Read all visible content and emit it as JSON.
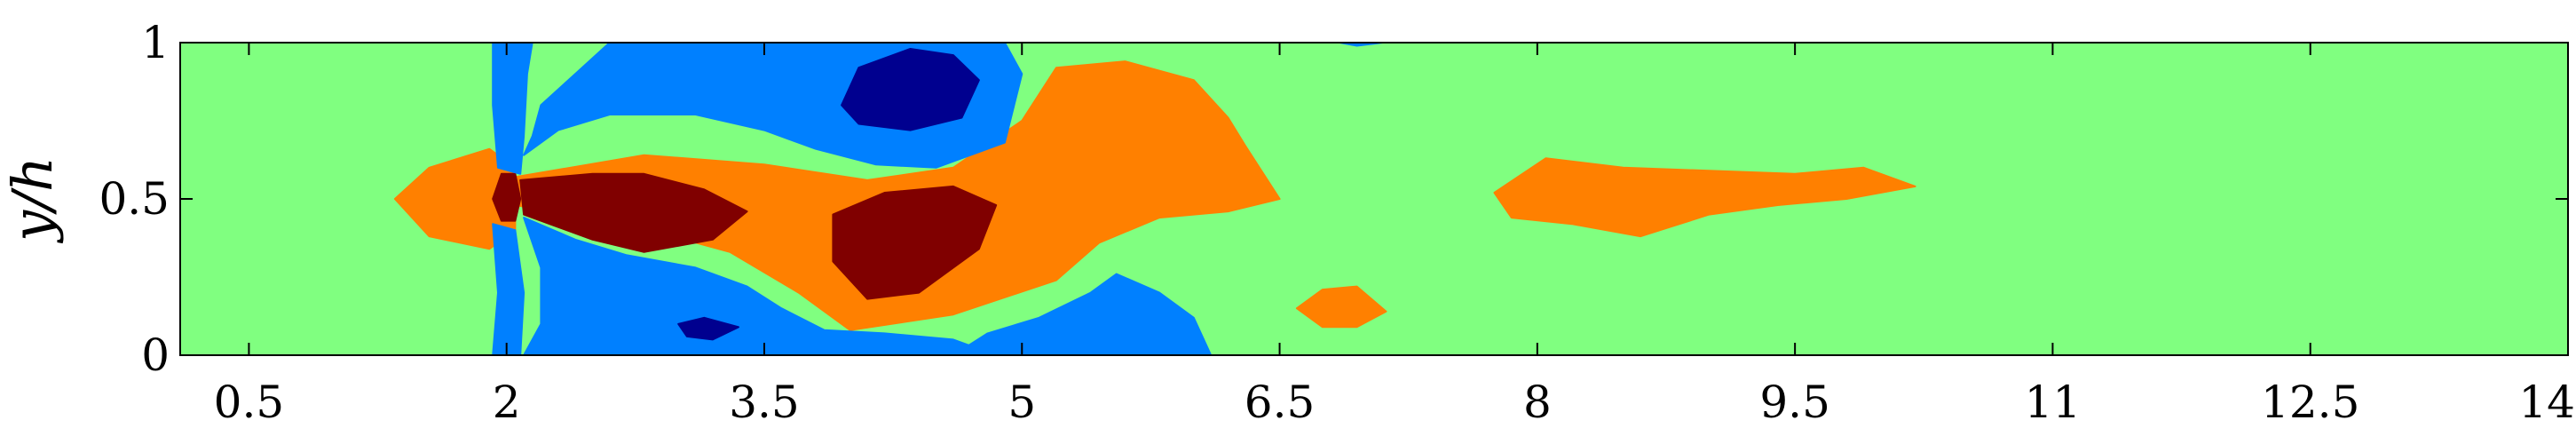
{
  "chart_data": {
    "type": "heatmap",
    "title": "",
    "xlabel": "",
    "ylabel": "y/h",
    "xlim": [
      0.1,
      14
    ],
    "ylim": [
      0,
      1
    ],
    "x_ticks": [
      "0.5",
      "2",
      "3.5",
      "5",
      "6.5",
      "8",
      "9.5",
      "11",
      "12.5",
      "14"
    ],
    "x_tick_values": [
      0.5,
      2,
      3.5,
      5,
      6.5,
      8,
      9.5,
      11,
      12.5,
      14
    ],
    "y_ticks": [
      "0",
      "0.5",
      "1"
    ],
    "y_tick_values": [
      0,
      0.5,
      1
    ],
    "grid": false,
    "colormap": "jet",
    "colors": {
      "background": "#80ff80",
      "strong_negative": "#00008f",
      "negative": "#0080ff",
      "positive": "#ff8000",
      "strong_positive": "#800000"
    },
    "regions": [
      {
        "level": "positive",
        "points": [
          [
            1.35,
            0.5
          ],
          [
            1.55,
            0.6
          ],
          [
            1.9,
            0.66
          ],
          [
            2.05,
            0.6
          ],
          [
            2.05,
            0.4
          ],
          [
            1.9,
            0.34
          ],
          [
            1.55,
            0.38
          ]
        ]
      },
      {
        "level": "positive",
        "points": [
          [
            2.05,
            0.57
          ],
          [
            2.8,
            0.64
          ],
          [
            3.5,
            0.61
          ],
          [
            4.1,
            0.56
          ],
          [
            4.6,
            0.6
          ],
          [
            5.0,
            0.75
          ],
          [
            5.2,
            0.92
          ],
          [
            5.6,
            0.94
          ],
          [
            6.0,
            0.88
          ],
          [
            6.2,
            0.76
          ],
          [
            6.3,
            0.67
          ],
          [
            6.5,
            0.5
          ],
          [
            6.2,
            0.46
          ],
          [
            5.8,
            0.44
          ],
          [
            5.45,
            0.36
          ],
          [
            5.2,
            0.24
          ],
          [
            4.6,
            0.13
          ],
          [
            4.0,
            0.08
          ],
          [
            3.7,
            0.2
          ],
          [
            3.3,
            0.33
          ],
          [
            2.7,
            0.42
          ],
          [
            2.05,
            0.48
          ]
        ]
      },
      {
        "level": "positive",
        "points": [
          [
            7.75,
            0.52
          ],
          [
            8.05,
            0.63
          ],
          [
            8.5,
            0.6
          ],
          [
            9.0,
            0.59
          ],
          [
            9.5,
            0.58
          ],
          [
            9.9,
            0.6
          ],
          [
            10.2,
            0.54
          ],
          [
            9.8,
            0.5
          ],
          [
            9.4,
            0.48
          ],
          [
            9.0,
            0.45
          ],
          [
            8.6,
            0.38
          ],
          [
            8.2,
            0.42
          ],
          [
            7.85,
            0.44
          ]
        ]
      },
      {
        "level": "positive",
        "points": [
          [
            6.6,
            0.15
          ],
          [
            6.75,
            0.21
          ],
          [
            6.95,
            0.22
          ],
          [
            7.12,
            0.14
          ],
          [
            6.95,
            0.09
          ],
          [
            6.75,
            0.09
          ]
        ]
      },
      {
        "level": "strong_positive",
        "points": [
          [
            2.08,
            0.56
          ],
          [
            2.5,
            0.58
          ],
          [
            2.8,
            0.58
          ],
          [
            3.15,
            0.53
          ],
          [
            3.4,
            0.46
          ],
          [
            3.2,
            0.37
          ],
          [
            2.8,
            0.33
          ],
          [
            2.5,
            0.37
          ],
          [
            2.1,
            0.45
          ]
        ]
      },
      {
        "level": "strong_positive",
        "points": [
          [
            3.9,
            0.45
          ],
          [
            4.2,
            0.52
          ],
          [
            4.6,
            0.54
          ],
          [
            4.85,
            0.48
          ],
          [
            4.75,
            0.34
          ],
          [
            4.4,
            0.2
          ],
          [
            4.1,
            0.18
          ],
          [
            3.9,
            0.3
          ]
        ]
      },
      {
        "level": "strong_positive",
        "points": [
          [
            1.92,
            0.5
          ],
          [
            1.97,
            0.58
          ],
          [
            2.05,
            0.58
          ],
          [
            2.08,
            0.5
          ],
          [
            2.05,
            0.43
          ],
          [
            1.97,
            0.43
          ]
        ]
      },
      {
        "level": "negative",
        "points": [
          [
            1.92,
            1.0
          ],
          [
            2.15,
            1.0
          ],
          [
            2.12,
            0.9
          ],
          [
            2.1,
            0.7
          ],
          [
            2.08,
            0.58
          ],
          [
            1.95,
            0.6
          ],
          [
            1.92,
            0.8
          ]
        ]
      },
      {
        "level": "negative",
        "points": [
          [
            2.1,
            0.64
          ],
          [
            2.3,
            0.72
          ],
          [
            2.6,
            0.77
          ],
          [
            3.1,
            0.77
          ],
          [
            3.5,
            0.72
          ],
          [
            3.8,
            0.66
          ],
          [
            4.15,
            0.61
          ],
          [
            4.5,
            0.6
          ],
          [
            4.9,
            0.68
          ],
          [
            5.0,
            0.9
          ],
          [
            4.9,
            1.0
          ],
          [
            2.6,
            1.0
          ],
          [
            2.4,
            0.9
          ],
          [
            2.2,
            0.8
          ],
          [
            2.15,
            0.7
          ]
        ]
      },
      {
        "level": "negative",
        "points": [
          [
            2.1,
            0.44
          ],
          [
            2.2,
            0.28
          ],
          [
            2.2,
            0.1
          ],
          [
            2.1,
            0.0
          ],
          [
            4.85,
            0.0
          ],
          [
            4.6,
            0.05
          ],
          [
            4.2,
            0.07
          ],
          [
            3.85,
            0.08
          ],
          [
            3.6,
            0.15
          ],
          [
            3.4,
            0.22
          ],
          [
            3.1,
            0.28
          ],
          [
            2.7,
            0.32
          ],
          [
            2.4,
            0.37
          ]
        ]
      },
      {
        "level": "negative",
        "points": [
          [
            4.6,
            0.0
          ],
          [
            4.8,
            0.07
          ],
          [
            5.1,
            0.12
          ],
          [
            5.4,
            0.2
          ],
          [
            5.55,
            0.26
          ],
          [
            5.8,
            0.2
          ],
          [
            6.0,
            0.12
          ],
          [
            6.1,
            0.0
          ]
        ]
      },
      {
        "level": "negative",
        "points": [
          [
            1.92,
            0.42
          ],
          [
            2.05,
            0.4
          ],
          [
            2.1,
            0.2
          ],
          [
            2.08,
            0.0
          ],
          [
            1.92,
            0.0
          ],
          [
            1.95,
            0.2
          ]
        ]
      },
      {
        "level": "negative",
        "points": [
          [
            6.85,
            1.0
          ],
          [
            6.95,
            0.99
          ],
          [
            7.1,
            1.0
          ]
        ]
      },
      {
        "level": "strong_negative",
        "points": [
          [
            3.95,
            0.8
          ],
          [
            4.05,
            0.92
          ],
          [
            4.35,
            0.98
          ],
          [
            4.6,
            0.96
          ],
          [
            4.75,
            0.88
          ],
          [
            4.65,
            0.76
          ],
          [
            4.35,
            0.72
          ],
          [
            4.05,
            0.74
          ]
        ]
      },
      {
        "level": "strong_negative",
        "points": [
          [
            3.0,
            0.1
          ],
          [
            3.15,
            0.12
          ],
          [
            3.35,
            0.09
          ],
          [
            3.2,
            0.05
          ],
          [
            3.05,
            0.06
          ]
        ]
      }
    ]
  }
}
